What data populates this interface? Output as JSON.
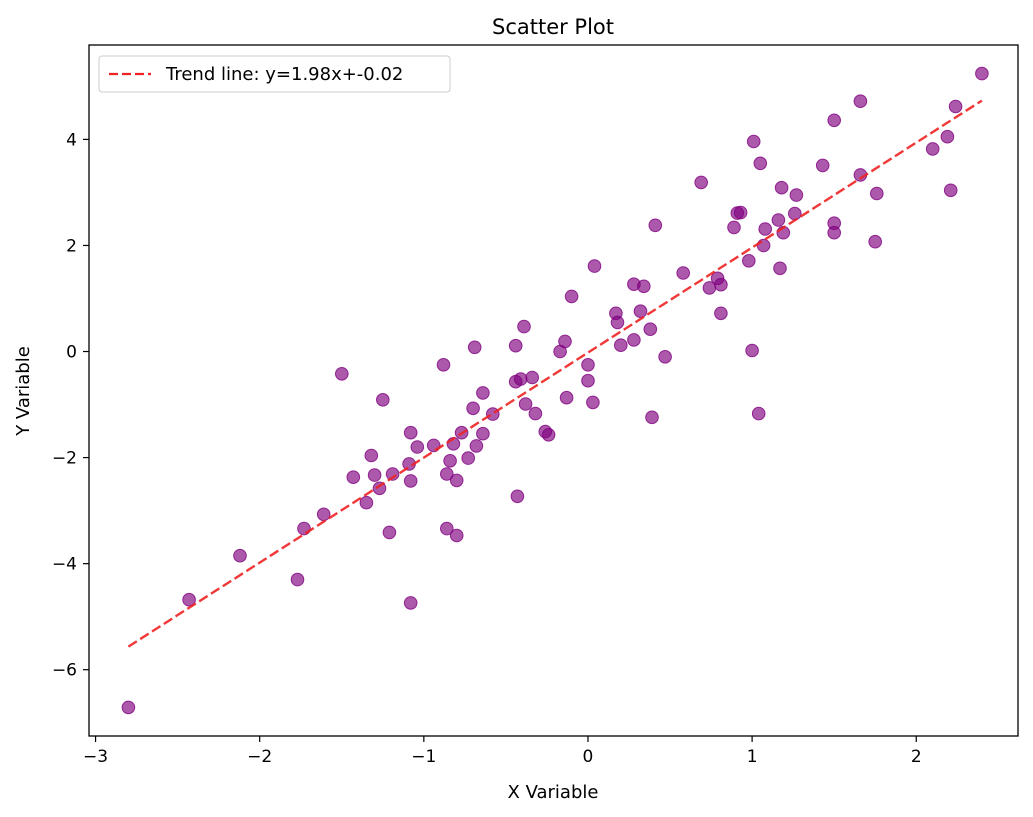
{
  "chart_data": {
    "type": "scatter",
    "title": "Scatter Plot",
    "xlabel": "X Variable",
    "ylabel": "Y Variable",
    "xlim": [
      -3.04,
      2.62
    ],
    "ylim": [
      -7.25,
      5.78
    ],
    "xticks": [
      -3,
      -2,
      -1,
      0,
      1,
      2
    ],
    "yticks": [
      -6,
      -4,
      -2,
      0,
      2,
      4
    ],
    "xtick_labels": [
      "−3",
      "−2",
      "−1",
      "0",
      "1",
      "2"
    ],
    "ytick_labels": [
      "−6",
      "−4",
      "−2",
      "0",
      "2",
      "4"
    ],
    "grid": false,
    "legend_position": "upper-left",
    "series": [
      {
        "color": "#800080",
        "points": [
          [
            -2.8,
            -6.71
          ],
          [
            -2.43,
            -4.68
          ],
          [
            -2.12,
            -3.85
          ],
          [
            -1.77,
            -4.3
          ],
          [
            -1.73,
            -3.34
          ],
          [
            -1.61,
            -3.07
          ],
          [
            -1.5,
            -0.42
          ],
          [
            -1.43,
            -2.37
          ],
          [
            -1.35,
            -2.85
          ],
          [
            -1.32,
            -1.96
          ],
          [
            -1.3,
            -2.33
          ],
          [
            -1.27,
            -2.58
          ],
          [
            -1.25,
            -0.91
          ],
          [
            -1.21,
            -3.41
          ],
          [
            -1.19,
            -2.31
          ],
          [
            -1.09,
            -2.12
          ],
          [
            -1.08,
            -1.53
          ],
          [
            -1.08,
            -2.44
          ],
          [
            -1.08,
            -4.74
          ],
          [
            -1.04,
            -1.8
          ],
          [
            -0.94,
            -1.77
          ],
          [
            -0.88,
            -0.25
          ],
          [
            -0.86,
            -2.31
          ],
          [
            -0.86,
            -3.34
          ],
          [
            -0.84,
            -2.06
          ],
          [
            -0.82,
            -1.74
          ],
          [
            -0.8,
            -3.47
          ],
          [
            -0.8,
            -2.43
          ],
          [
            -0.77,
            -1.53
          ],
          [
            -0.73,
            -2.01
          ],
          [
            -0.7,
            -1.07
          ],
          [
            -0.69,
            0.08
          ],
          [
            -0.68,
            -1.78
          ],
          [
            -0.64,
            -0.78
          ],
          [
            -0.64,
            -1.55
          ],
          [
            -0.58,
            -1.18
          ],
          [
            -0.44,
            0.11
          ],
          [
            -0.44,
            -0.57
          ],
          [
            -0.43,
            -2.73
          ],
          [
            -0.41,
            -0.52
          ],
          [
            -0.39,
            0.47
          ],
          [
            -0.38,
            -0.99
          ],
          [
            -0.34,
            -0.49
          ],
          [
            -0.32,
            -1.17
          ],
          [
            -0.26,
            -1.51
          ],
          [
            -0.24,
            -1.57
          ],
          [
            -0.17,
            0.0
          ],
          [
            -0.14,
            0.19
          ],
          [
            -0.13,
            -0.87
          ],
          [
            -0.1,
            1.04
          ],
          [
            0.0,
            -0.25
          ],
          [
            0.0,
            -0.55
          ],
          [
            0.03,
            -0.96
          ],
          [
            0.04,
            1.61
          ],
          [
            0.17,
            0.72
          ],
          [
            0.18,
            0.55
          ],
          [
            0.2,
            0.12
          ],
          [
            0.28,
            0.22
          ],
          [
            0.28,
            1.27
          ],
          [
            0.32,
            0.76
          ],
          [
            0.34,
            1.23
          ],
          [
            0.38,
            0.42
          ],
          [
            0.39,
            -1.24
          ],
          [
            0.41,
            2.38
          ],
          [
            0.47,
            -0.1
          ],
          [
            0.58,
            1.48
          ],
          [
            0.69,
            3.19
          ],
          [
            0.74,
            1.2
          ],
          [
            0.79,
            1.38
          ],
          [
            0.81,
            1.26
          ],
          [
            0.81,
            0.72
          ],
          [
            0.89,
            2.34
          ],
          [
            0.91,
            2.61
          ],
          [
            0.93,
            2.62
          ],
          [
            0.98,
            1.71
          ],
          [
            1.0,
            0.02
          ],
          [
            1.01,
            3.96
          ],
          [
            1.04,
            -1.17
          ],
          [
            1.05,
            3.55
          ],
          [
            1.07,
            2.0
          ],
          [
            1.08,
            2.31
          ],
          [
            1.16,
            2.48
          ],
          [
            1.17,
            1.57
          ],
          [
            1.18,
            3.09
          ],
          [
            1.19,
            2.24
          ],
          [
            1.26,
            2.6
          ],
          [
            1.27,
            2.95
          ],
          [
            1.43,
            3.51
          ],
          [
            1.5,
            4.36
          ],
          [
            1.5,
            2.42
          ],
          [
            1.5,
            2.24
          ],
          [
            1.66,
            4.72
          ],
          [
            1.66,
            3.33
          ],
          [
            1.75,
            2.07
          ],
          [
            1.76,
            2.98
          ],
          [
            2.1,
            3.82
          ],
          [
            2.19,
            4.05
          ],
          [
            2.21,
            3.04
          ],
          [
            2.24,
            4.62
          ],
          [
            2.4,
            5.24
          ]
        ]
      }
    ],
    "trend_line": {
      "label": "Trend line: y=1.98x+-0.02",
      "slope": 1.98,
      "intercept": -0.02,
      "x_range": [
        -2.8,
        2.4
      ],
      "color": "#ee2222",
      "style": "dashed"
    }
  }
}
